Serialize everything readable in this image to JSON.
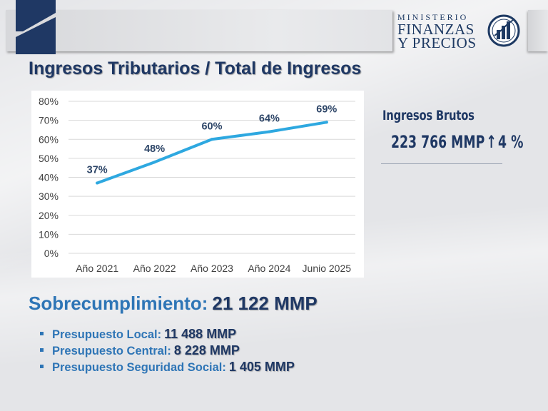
{
  "header": {
    "logo_line1": "MINISTERIO",
    "logo_line2": "FINANZAS",
    "logo_line3": "Y PRECIOS"
  },
  "title": "Ingresos Tributarios / Total de Ingresos",
  "chart_data": {
    "type": "line",
    "categories": [
      "Año 2021",
      "Año 2022",
      "Año 2023",
      "Año 2024",
      "Junio 2025"
    ],
    "series": [
      {
        "values": [
          37,
          48,
          60,
          64,
          69
        ],
        "data_labels": [
          "37%",
          "48%",
          "60%",
          "64%",
          "69%"
        ]
      }
    ],
    "ylim": [
      0,
      80
    ],
    "yticks": [
      "0%",
      "10%",
      "20%",
      "30%",
      "40%",
      "50%",
      "60%",
      "70%",
      "80%"
    ],
    "grid": true,
    "line_color": "#2ea8e0"
  },
  "kpi": {
    "label": "Ingresos Brutos",
    "value": "223 766 MMP",
    "change": "4 %"
  },
  "overfulfillment": {
    "label": "Sobrecumplimiento:",
    "value": "21 122 MMP"
  },
  "budget_items": [
    {
      "label": "Presupuesto Local:",
      "value": "11 488 MMP"
    },
    {
      "label": "Presupuesto Central:",
      "value": "8 228 MMP"
    },
    {
      "label": "Presupuesto Seguridad Social:",
      "value": "1 405 MMP"
    }
  ],
  "colors": {
    "navy": "#1f3864",
    "accent_blue": "#2e75b6"
  }
}
